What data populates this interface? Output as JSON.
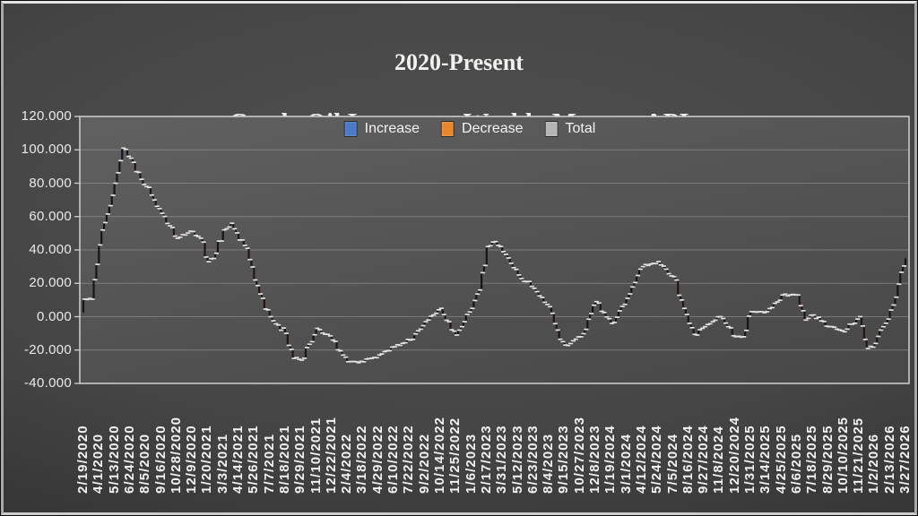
{
  "title": {
    "line1": "2020-Present",
    "line2": "Crude Oil Inventory Weekly Moves:  API"
  },
  "legend": {
    "items": [
      {
        "label": "Increase",
        "color": "#4a7ac7"
      },
      {
        "label": "Decrease",
        "color": "#e8872e"
      },
      {
        "label": "Total",
        "color": "#b5b5b5"
      }
    ]
  },
  "chart_data": {
    "type": "bar",
    "subtype": "waterfall",
    "title": "2020-Present Crude Oil Inventory Weekly Moves: API",
    "xlabel": "",
    "ylabel": "",
    "ylim": [
      -40,
      120
    ],
    "ytick_step": 20,
    "ytick_labels": [
      "120.000",
      "100.000",
      "80.000",
      "60.000",
      "40.000",
      "20.000",
      "0.000",
      "-20.000",
      "-40.000"
    ],
    "grid": true,
    "legend_entries": [
      "Increase",
      "Decrease",
      "Total"
    ],
    "legend_position": "top-center",
    "frequency": "weekly",
    "weeks_per_tick": 6,
    "x_tick_dates": [
      "2/19/2020",
      "4/1/2020",
      "5/13/2020",
      "6/24/2020",
      "8/5/2020",
      "9/16/2020",
      "10/28/2020",
      "12/9/2020",
      "1/20/2021",
      "3/3/2021",
      "4/14/2021",
      "5/26/2021",
      "7/7/2021",
      "8/18/2021",
      "9/29/2021",
      "11/10/2021",
      "12/22/2021",
      "2/4/2022",
      "3/18/2022",
      "4/29/2022",
      "6/10/2022",
      "7/22/2022",
      "9/2/2022",
      "10/14/2022",
      "11/25/2022",
      "1/6/2023",
      "2/17/2023",
      "3/31/2023",
      "5/12/2023",
      "6/23/2023",
      "8/4/2023",
      "9/15/2023",
      "10/27/2023",
      "12/8/2023",
      "1/19/2024",
      "3/1/2024",
      "4/12/2024",
      "5/24/2024",
      "7/5/2024",
      "8/16/2024",
      "9/27/2024",
      "11/8/2024",
      "12/20/2024",
      "1/31/2025",
      "3/14/2025",
      "4/25/2025",
      "6/6/2025",
      "7/18/2025",
      "8/29/2025",
      "10/10/2025",
      "11/21/2025",
      "1/2/2026",
      "2/13/2026",
      "3/27/2026"
    ],
    "start_value": 2.5,
    "cumulative_at_ticks": [
      10.5,
      43,
      80,
      95,
      78,
      62,
      47,
      51,
      33,
      52,
      46,
      22,
      0,
      -10,
      -26,
      -7,
      -14,
      -27,
      -27,
      -23,
      -18,
      -14,
      -3,
      5,
      -11,
      5,
      42,
      39,
      25,
      17,
      6,
      -17,
      -12,
      9,
      -4,
      11,
      30,
      33,
      24,
      -4,
      -6,
      0,
      -12,
      3,
      3,
      13,
      13,
      1,
      -6,
      -9,
      0,
      -16,
      4,
      35
    ],
    "mid_values": [
      10.5,
      null,
      101,
      null,
      null,
      null,
      null,
      47,
      38,
      56,
      41,
      null,
      null,
      -25,
      null,
      null,
      null,
      null,
      null,
      null,
      null,
      null,
      null,
      null,
      null,
      16,
      45,
      null,
      null,
      null,
      -8,
      null,
      null,
      null,
      null,
      null,
      null,
      null,
      null,
      -11,
      null,
      null,
      -12,
      3,
      null,
      null,
      -2,
      null,
      null,
      null,
      -19,
      null,
      null
    ],
    "colors": {
      "increase_fill": "#15151e",
      "decrease_fill": "#241711",
      "connector": "#e4e4e4",
      "gridline": "#a9a9a9",
      "axis_frame": "#c9c9c9",
      "tick_label": "#eaeaea"
    }
  }
}
